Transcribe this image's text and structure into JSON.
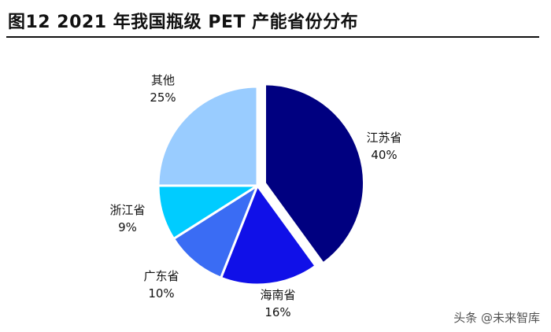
{
  "header": {
    "title": "图12 2021 年我国瓶级 PET 产能省份分布"
  },
  "chart_data": {
    "type": "pie",
    "unit": "%",
    "slices": [
      {
        "label": "江苏省",
        "value": 40,
        "display": "40%",
        "color": "#000080",
        "exploded": true
      },
      {
        "label": "海南省",
        "value": 16,
        "display": "16%",
        "color": "#1010e8",
        "exploded": false
      },
      {
        "label": "广东省",
        "value": 10,
        "display": "10%",
        "color": "#3a6cf4",
        "exploded": false
      },
      {
        "label": "浙江省",
        "value": 9,
        "display": "9%",
        "color": "#00ccff",
        "exploded": false
      },
      {
        "label": "其他",
        "value": 25,
        "display": "25%",
        "color": "#99ccff",
        "exploded": false
      }
    ],
    "start": "12 o'clock",
    "direction": "clockwise",
    "legend": "none"
  },
  "watermark": {
    "text": "头条 @未来智库"
  }
}
